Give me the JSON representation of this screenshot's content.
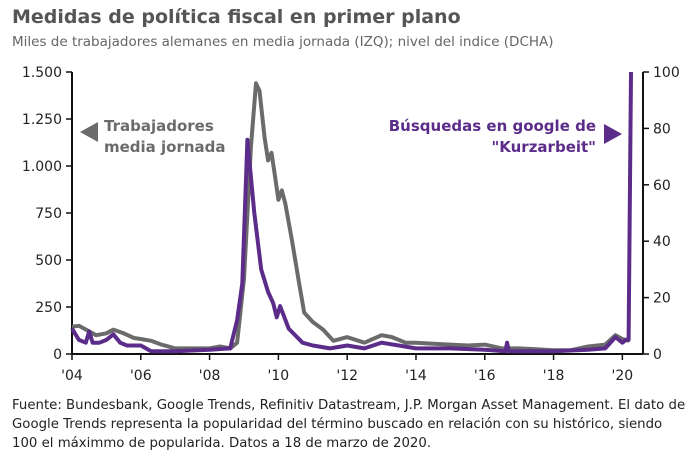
{
  "title": "Medidas de política fiscal en primer plano",
  "subtitle": "Miles de trabajadores alemanes en media jornada (IZQ); nivel del indice (DCHA)",
  "footer": "Fuente: Bundesbank, Google Trends, Refinitiv Datastream, J.P. Morgan Asset Management. El dato de Google Trends representa la popularidad del término buscado en relación con su histórico, siendo 100 el máximmo de popularida. Datos a 18 de marzo de 2020.",
  "colors": {
    "gray": "#6b6b6b",
    "purple": "#5b2c8a"
  },
  "chart_data": {
    "type": "line",
    "xlim": [
      2004,
      2020.6
    ],
    "x_ticks": [
      2004,
      2006,
      2008,
      2010,
      2012,
      2014,
      2016,
      2018,
      2020
    ],
    "x_tick_labels": [
      "'04",
      "'06",
      "'08",
      "'10",
      "'12",
      "'14",
      "'16",
      "'18",
      "'20"
    ],
    "y_left": {
      "lim": [
        0,
        1500
      ],
      "ticks": [
        0,
        250,
        500,
        750,
        1000,
        1250,
        1500
      ],
      "tick_labels": [
        "0",
        "250",
        "500",
        "750",
        "1.000",
        "1.250",
        "1.500"
      ]
    },
    "y_right": {
      "lim": [
        0,
        100
      ],
      "ticks": [
        0,
        20,
        40,
        60,
        80,
        100
      ],
      "tick_labels": [
        "0",
        "20",
        "40",
        "60",
        "80",
        "100"
      ]
    },
    "series": [
      {
        "name": "Trabajadores media jornada",
        "label_lines": [
          "Trabajadores",
          "media jornada"
        ],
        "axis": "left",
        "color": "#6b6b6b",
        "x": [
          2004,
          2004.2,
          2004.5,
          2004.7,
          2005,
          2005.2,
          2005.5,
          2005.8,
          2006,
          2006.3,
          2006.6,
          2007,
          2007.5,
          2008,
          2008.3,
          2008.6,
          2008.8,
          2009,
          2009.2,
          2009.35,
          2009.45,
          2009.6,
          2009.7,
          2009.8,
          2009.9,
          2010,
          2010.1,
          2010.2,
          2010.4,
          2010.6,
          2010.75,
          2011,
          2011.3,
          2011.6,
          2012,
          2012.5,
          2013,
          2013.3,
          2013.7,
          2014,
          2014.5,
          2015,
          2015.5,
          2016,
          2016.5,
          2017,
          2017.5,
          2018,
          2018.5,
          2019,
          2019.5,
          2019.8,
          2020,
          2020.2
        ],
        "y": [
          145,
          150,
          120,
          100,
          110,
          130,
          110,
          85,
          80,
          70,
          50,
          30,
          30,
          30,
          40,
          30,
          60,
          400,
          1100,
          1440,
          1400,
          1150,
          1030,
          1070,
          950,
          820,
          870,
          800,
          600,
          380,
          220,
          170,
          130,
          70,
          90,
          60,
          100,
          90,
          60,
          60,
          55,
          50,
          45,
          50,
          30,
          30,
          25,
          20,
          20,
          40,
          50,
          100,
          80,
          70
        ]
      },
      {
        "name": "Búsquedas en google de \"Kurzarbeit\"",
        "label_lines": [
          "Búsquedas en google de",
          "\"Kurzarbeit\""
        ],
        "axis": "right",
        "color": "#5b2c8a",
        "x": [
          2004,
          2004.2,
          2004.4,
          2004.5,
          2004.6,
          2004.8,
          2005,
          2005.2,
          2005.4,
          2005.6,
          2006,
          2006.3,
          2007,
          2008,
          2008.6,
          2008.8,
          2008.95,
          2009.1,
          2009.3,
          2009.5,
          2009.7,
          2009.85,
          2009.95,
          2010.05,
          2010.3,
          2010.7,
          2011,
          2011.5,
          2012,
          2012.5,
          2013,
          2013.5,
          2014,
          2015,
          2016,
          2016.6,
          2016.65,
          2016.7,
          2017,
          2018,
          2019,
          2019.5,
          2019.8,
          2020,
          2020.1,
          2020.18,
          2020.25
        ],
        "y": [
          9,
          5,
          4,
          8,
          4,
          4,
          5,
          7,
          4,
          3,
          3,
          1,
          1,
          1.5,
          2,
          12,
          25,
          76,
          50,
          30,
          22,
          18,
          13,
          17,
          9,
          4,
          3,
          2,
          3,
          2,
          4,
          3,
          2,
          2,
          1.5,
          1,
          4,
          1,
          1,
          1,
          1.5,
          2,
          6,
          4,
          5,
          5,
          100
        ]
      }
    ]
  }
}
